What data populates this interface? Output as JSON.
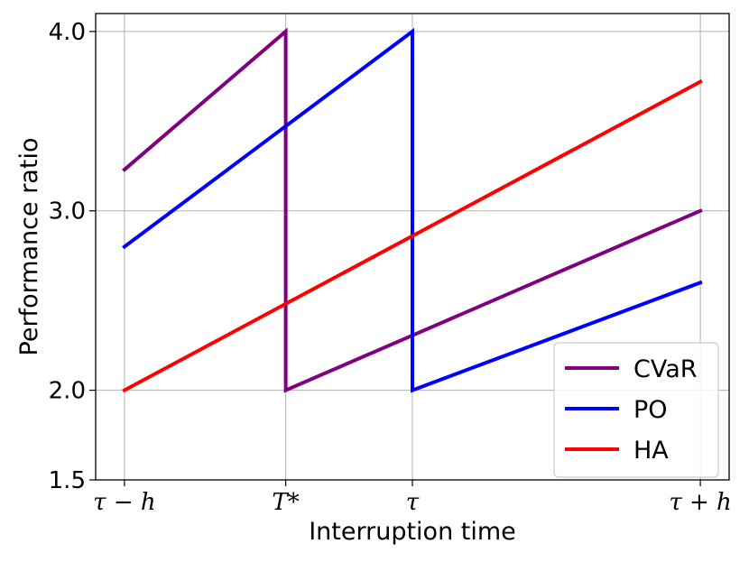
{
  "chart_data": {
    "type": "line",
    "title": "",
    "xlabel": "Interruption time",
    "ylabel": "Performance ratio",
    "x_ticks": [
      {
        "pos": 0,
        "label": "τ − h"
      },
      {
        "pos": 0.28,
        "label": "T*"
      },
      {
        "pos": 0.5,
        "label": "τ"
      },
      {
        "pos": 1,
        "label": "τ + h"
      }
    ],
    "y_ticks": [
      1.5,
      2.0,
      3.0,
      4.0
    ],
    "y_tick_labels": [
      "1.5",
      "2.0",
      "3.0",
      "4.0"
    ],
    "xlim": [
      -0.05,
      1.05
    ],
    "ylim": [
      1.5,
      4.1
    ],
    "grid": true,
    "legend_position": "bottom-right",
    "series": [
      {
        "name": "CVaR",
        "color": "#800080",
        "x": [
          0,
          0.28,
          0.28,
          1
        ],
        "y": [
          3.23,
          4.0,
          2.0,
          3.0
        ]
      },
      {
        "name": "PO",
        "color": "#0000ff",
        "x": [
          0,
          0.5,
          0.5,
          1
        ],
        "y": [
          2.8,
          4.0,
          2.0,
          2.6
        ]
      },
      {
        "name": "HA",
        "color": "#ff0000",
        "x": [
          0,
          1
        ],
        "y": [
          2.0,
          3.72
        ]
      }
    ]
  }
}
